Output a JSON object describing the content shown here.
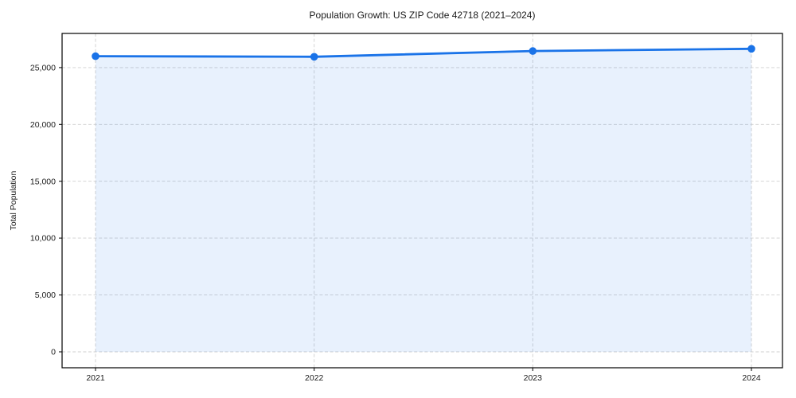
{
  "chart_data": {
    "type": "line",
    "title": "Population Growth: US ZIP Code 42718 (2021–2024)",
    "xlabel": "",
    "ylabel": "Total Population",
    "x": [
      2021,
      2022,
      2023,
      2024
    ],
    "xtick_labels": [
      "2021",
      "2022",
      "2023",
      "2024"
    ],
    "series": [
      {
        "name": "Total Population",
        "values": [
          26000,
          25950,
          26450,
          26650
        ]
      }
    ],
    "yticks": [
      0,
      5000,
      10000,
      15000,
      20000,
      25000
    ],
    "ytick_labels": [
      "0",
      "5,000",
      "10,000",
      "15,000",
      "20,000",
      "25,000"
    ],
    "ylim": [
      -1400,
      28000
    ],
    "grid": true,
    "grid_style": "dashed",
    "legend_position": "none",
    "area_fill_to_zero": true,
    "colors": {
      "line": "#1a73e8",
      "marker": "#1a73e8",
      "area_fill": "#1a73e8",
      "area_fill_opacity": 0.1,
      "grid": "#cfcfcf",
      "spine": "#000000",
      "text": "#1a1a1a",
      "background": "#ffffff"
    }
  }
}
